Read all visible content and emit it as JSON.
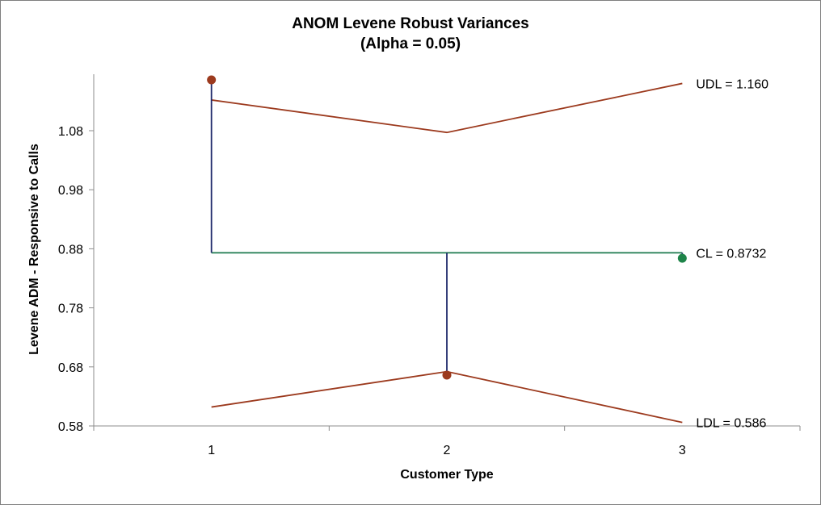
{
  "chart_data": {
    "type": "line",
    "title": "ANOM Levene Robust Variances",
    "subtitle": "(Alpha = 0.05)",
    "xlabel": "Customer Type",
    "ylabel": "Levene ADM - Responsive to Calls",
    "categories": [
      "1",
      "2",
      "3"
    ],
    "y_ticks": [
      "0.58",
      "0.68",
      "0.78",
      "0.88",
      "0.98",
      "1.08"
    ],
    "ylim": [
      0.58,
      1.17
    ],
    "center_line": 0.8732,
    "series": [
      {
        "name": "",
        "role": "points",
        "values": [
          1.166,
          0.666,
          0.864
        ],
        "colors": [
          "#9c3a1e",
          "#9c3a1e",
          "#1e8449"
        ]
      },
      {
        "name": "",
        "role": "upper_decision_limit",
        "values": [
          1.132,
          1.077,
          1.16
        ]
      },
      {
        "name": "",
        "role": "lower_decision_limit",
        "values": [
          0.612,
          0.672,
          0.586
        ]
      }
    ],
    "annotations": {
      "udl": "UDL = 1.160",
      "cl": "CL = 0.8732",
      "ldl": "LDL = 0.586"
    },
    "colors": {
      "limits": "#9c3a1e",
      "center": "#1e7a4f",
      "stems": "#1f2a6b",
      "point_out": "#9c3a1e",
      "point_in": "#1e8449"
    },
    "grid": false,
    "legend": "none"
  }
}
